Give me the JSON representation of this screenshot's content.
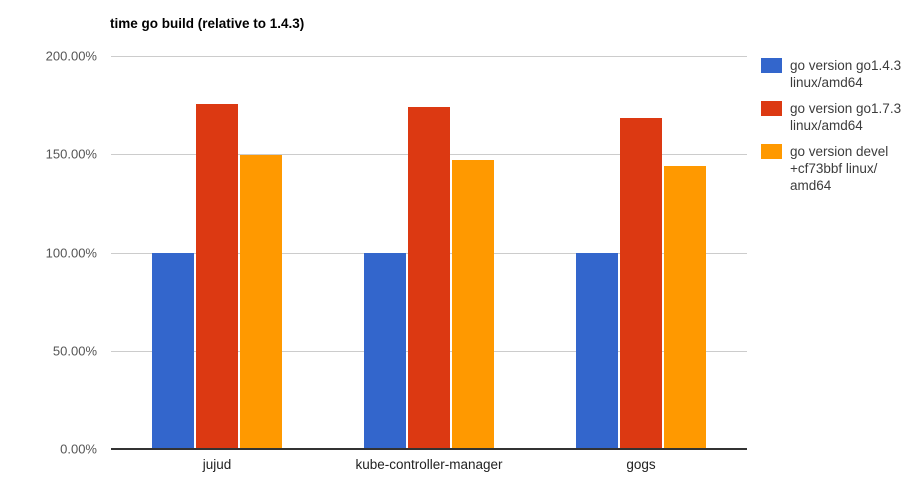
{
  "chart_data": {
    "type": "bar",
    "title": "time go build (relative to 1.4.3)",
    "categories": [
      "jujud",
      "kube-controller-manager",
      "gogs"
    ],
    "series": [
      {
        "name": "go version go1.4.3 linux/amd64",
        "legend_label": "go version go1.4.3\nlinux/amd64",
        "color": "#3366CC",
        "values": [
          100,
          100,
          100
        ]
      },
      {
        "name": "go version go1.7.3 linux/amd64",
        "legend_label": "go version go1.7.3\nlinux/amd64",
        "color": "#DC3912",
        "values": [
          175.5,
          174,
          168.5
        ]
      },
      {
        "name": "go version devel +cf73bbf linux/amd64",
        "legend_label": "go version devel\n+cf73bbf linux/\namd64",
        "color": "#FF9900",
        "values": [
          149.5,
          147,
          144
        ]
      }
    ],
    "xlabel": "",
    "ylabel": "",
    "ylim": [
      0,
      200
    ],
    "yticks": [
      {
        "value": 0,
        "label": "0.00%"
      },
      {
        "value": 50,
        "label": "50.00%"
      },
      {
        "value": 100,
        "label": "100.00%"
      },
      {
        "value": 150,
        "label": "150.00%"
      },
      {
        "value": 200,
        "label": "200.00%"
      }
    ],
    "grid": true,
    "legend_position": "right",
    "colors": {
      "background": "#FFFFFF",
      "gridline": "#CCCCCC",
      "axis_line": "#333333",
      "ytick_label": "#555555",
      "xtick_label": "#222222",
      "title": "#000000",
      "legend_text": "#3C3C3C"
    }
  }
}
